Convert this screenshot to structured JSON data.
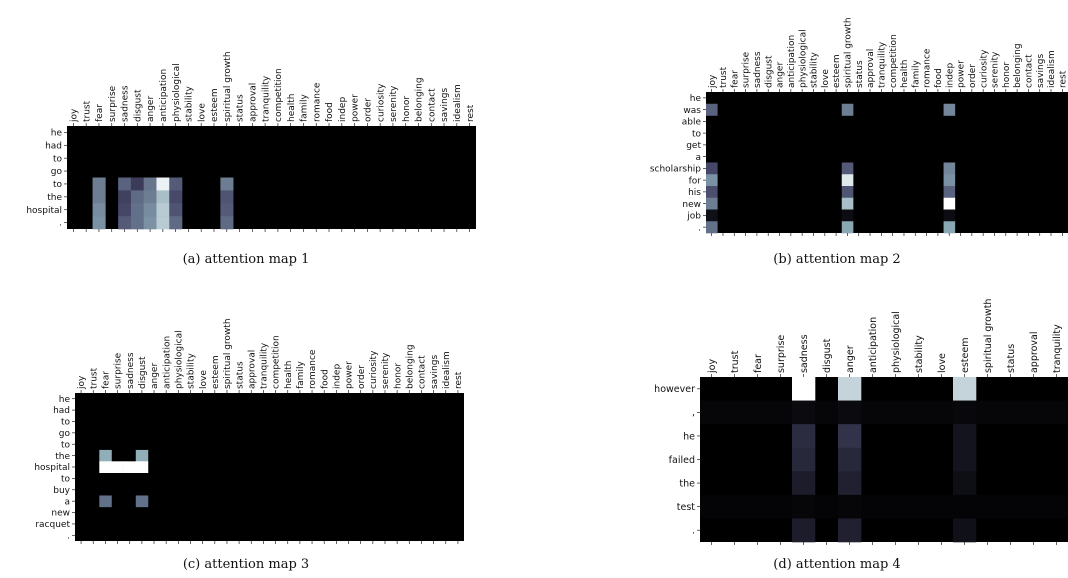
{
  "chart_data": [
    {
      "type": "heatmap",
      "caption": "(a)  attention map 1",
      "x": [
        "joy",
        "trust",
        "fear",
        "surprise",
        "sadness",
        "disgust",
        "anger",
        "anticipation",
        "physiological",
        "stability",
        "love",
        "esteem",
        "spiritual growth",
        "status",
        "approval",
        "tranquility",
        "competition",
        "health",
        "family",
        "romance",
        "food",
        "indep",
        "power",
        "order",
        "curiosity",
        "serenity",
        "honor",
        "belonging",
        "contact",
        "savings",
        "idealism",
        "rest"
      ],
      "y": [
        "he",
        "had",
        "to",
        "go",
        "to",
        "the",
        "hospital",
        "."
      ],
      "cells": [
        [
          4,
          2,
          0.55
        ],
        [
          4,
          4,
          0.45
        ],
        [
          4,
          5,
          0.3
        ],
        [
          4,
          6,
          0.52
        ],
        [
          4,
          7,
          0.95
        ],
        [
          4,
          8,
          0.42
        ],
        [
          4,
          12,
          0.55
        ],
        [
          5,
          2,
          0.55
        ],
        [
          5,
          4,
          0.32
        ],
        [
          5,
          5,
          0.48
        ],
        [
          5,
          6,
          0.55
        ],
        [
          5,
          7,
          0.78
        ],
        [
          5,
          8,
          0.36
        ],
        [
          5,
          12,
          0.4
        ],
        [
          6,
          2,
          0.6
        ],
        [
          6,
          4,
          0.35
        ],
        [
          6,
          5,
          0.5
        ],
        [
          6,
          6,
          0.6
        ],
        [
          6,
          7,
          0.82
        ],
        [
          6,
          8,
          0.4
        ],
        [
          6,
          12,
          0.42
        ],
        [
          7,
          2,
          0.62
        ],
        [
          7,
          4,
          0.42
        ],
        [
          7,
          5,
          0.5
        ],
        [
          7,
          6,
          0.62
        ],
        [
          7,
          7,
          0.82
        ],
        [
          7,
          8,
          0.48
        ],
        [
          7,
          12,
          0.48
        ]
      ]
    },
    {
      "type": "heatmap",
      "caption": "(b)  attention map 2",
      "x": [
        "joy",
        "trust",
        "fear",
        "surprise",
        "sadness",
        "disgust",
        "anger",
        "anticipation",
        "physiological",
        "stability",
        "love",
        "esteem",
        "spiritual growth",
        "status",
        "approval",
        "tranquility",
        "competition",
        "health",
        "family",
        "romance",
        "food",
        "indep",
        "power",
        "order",
        "curiosity",
        "serenity",
        "honor",
        "belonging",
        "contact",
        "savings",
        "idealism",
        "rest"
      ],
      "y": [
        "he",
        "was",
        "able",
        "to",
        "get",
        "a",
        "scholarship",
        "for",
        "his",
        "new",
        "job",
        "."
      ],
      "cells": [
        [
          1,
          0,
          0.45
        ],
        [
          1,
          12,
          0.55
        ],
        [
          1,
          21,
          0.58
        ],
        [
          6,
          0,
          0.35
        ],
        [
          6,
          12,
          0.42
        ],
        [
          6,
          21,
          0.58
        ],
        [
          7,
          0,
          0.62
        ],
        [
          7,
          12,
          0.92
        ],
        [
          7,
          21,
          0.62
        ],
        [
          8,
          0,
          0.38
        ],
        [
          8,
          12,
          0.4
        ],
        [
          8,
          21,
          0.45
        ],
        [
          9,
          0,
          0.55
        ],
        [
          9,
          12,
          0.78
        ],
        [
          9,
          21,
          1.0
        ],
        [
          10,
          0,
          0.08
        ],
        [
          10,
          12,
          0.06
        ],
        [
          10,
          21,
          0.06
        ],
        [
          11,
          0,
          0.5
        ],
        [
          11,
          12,
          0.7
        ],
        [
          11,
          21,
          0.7
        ]
      ]
    },
    {
      "type": "heatmap",
      "caption": "(c)  attention map 3",
      "x": [
        "joy",
        "trust",
        "fear",
        "surprise",
        "sadness",
        "disgust",
        "anger",
        "anticipation",
        "physiological",
        "stability",
        "love",
        "esteem",
        "spiritual growth",
        "status",
        "approval",
        "tranquility",
        "competition",
        "health",
        "family",
        "romance",
        "food",
        "indep",
        "power",
        "order",
        "curiosity",
        "serenity",
        "honor",
        "belonging",
        "contact",
        "savings",
        "idealism",
        "rest"
      ],
      "y": [
        "he",
        "had",
        "to",
        "go",
        "to",
        "the",
        "hospital",
        "to",
        "buy",
        "a",
        "new",
        "racquet",
        "."
      ],
      "cells": [
        [
          5,
          2,
          0.72
        ],
        [
          5,
          5,
          0.72
        ],
        [
          6,
          2,
          1.0
        ],
        [
          6,
          3,
          1.0
        ],
        [
          6,
          4,
          1.0
        ],
        [
          6,
          5,
          1.0
        ],
        [
          9,
          2,
          0.5
        ],
        [
          9,
          5,
          0.5
        ]
      ]
    },
    {
      "type": "heatmap",
      "caption": "(d)  attention map 4",
      "x": [
        "joy",
        "trust",
        "fear",
        "surprise",
        "sadness",
        "disgust",
        "anger",
        "anticipation",
        "physiological",
        "stability",
        "love",
        "esteem",
        "spiritual growth",
        "status",
        "approval",
        "tranquility"
      ],
      "y": [
        "however",
        ",",
        "he",
        "failed",
        "the",
        "test",
        "."
      ],
      "cells": [
        [
          0,
          4,
          1.0
        ],
        [
          0,
          6,
          0.85
        ],
        [
          0,
          11,
          0.85
        ],
        [
          1,
          0,
          0.03
        ],
        [
          1,
          1,
          0.03
        ],
        [
          1,
          2,
          0.03
        ],
        [
          1,
          3,
          0.03
        ],
        [
          1,
          4,
          0.05
        ],
        [
          1,
          5,
          0.03
        ],
        [
          1,
          6,
          0.05
        ],
        [
          1,
          7,
          0.03
        ],
        [
          1,
          8,
          0.03
        ],
        [
          1,
          9,
          0.03
        ],
        [
          1,
          10,
          0.03
        ],
        [
          1,
          11,
          0.04
        ],
        [
          1,
          12,
          0.03
        ],
        [
          1,
          13,
          0.03
        ],
        [
          1,
          14,
          0.03
        ],
        [
          1,
          15,
          0.03
        ],
        [
          2,
          4,
          0.22
        ],
        [
          2,
          6,
          0.25
        ],
        [
          2,
          11,
          0.1
        ],
        [
          3,
          4,
          0.2
        ],
        [
          3,
          6,
          0.2
        ],
        [
          3,
          11,
          0.1
        ],
        [
          4,
          4,
          0.14
        ],
        [
          4,
          6,
          0.16
        ],
        [
          4,
          11,
          0.07
        ],
        [
          5,
          0,
          0.02
        ],
        [
          5,
          1,
          0.02
        ],
        [
          5,
          2,
          0.02
        ],
        [
          5,
          3,
          0.02
        ],
        [
          5,
          4,
          0.03
        ],
        [
          5,
          5,
          0.02
        ],
        [
          5,
          6,
          0.03
        ],
        [
          5,
          7,
          0.02
        ],
        [
          5,
          8,
          0.02
        ],
        [
          5,
          9,
          0.02
        ],
        [
          5,
          10,
          0.02
        ],
        [
          5,
          11,
          0.02
        ],
        [
          5,
          12,
          0.02
        ],
        [
          5,
          13,
          0.02
        ],
        [
          5,
          14,
          0.02
        ],
        [
          5,
          15,
          0.02
        ],
        [
          6,
          4,
          0.14
        ],
        [
          6,
          6,
          0.16
        ],
        [
          6,
          11,
          0.08
        ]
      ]
    }
  ]
}
